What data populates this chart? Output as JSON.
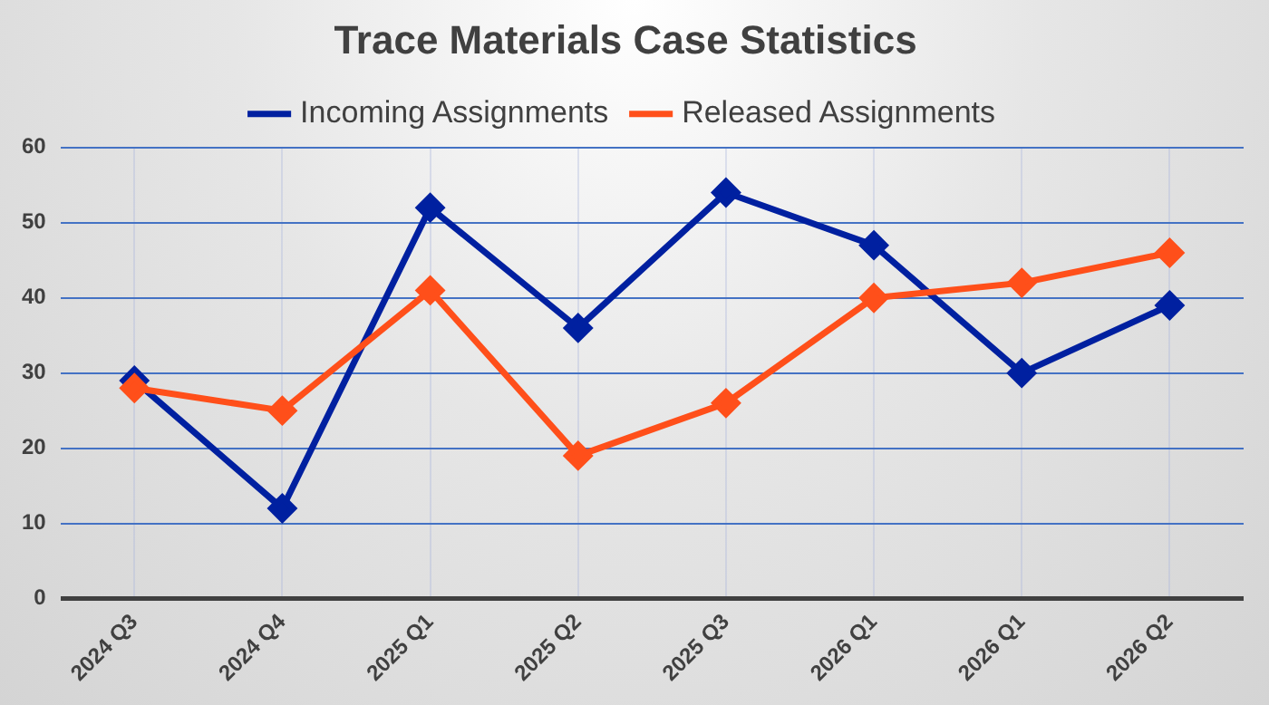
{
  "chart_data": {
    "type": "line",
    "title": "Trace Materials Case Statistics",
    "categories": [
      "2024 Q3",
      "2024 Q4",
      "2025 Q1",
      "2025 Q2",
      "2025 Q3",
      "2026 Q1",
      "2026 Q1",
      "2026 Q2"
    ],
    "series": [
      {
        "name": "Incoming Assignments",
        "color": "#0020a0",
        "values": [
          29,
          12,
          52,
          36,
          54,
          47,
          30,
          39
        ]
      },
      {
        "name": "Released Assignments",
        "color": "#ff4f1a",
        "values": [
          28,
          25,
          41,
          19,
          26,
          40,
          42,
          46
        ]
      }
    ],
    "ylim": [
      0,
      60
    ],
    "yticks": [
      0,
      10,
      20,
      30,
      40,
      50,
      60
    ],
    "grid": true,
    "legend": "top",
    "marker": "diamond",
    "line_style": "solid"
  }
}
